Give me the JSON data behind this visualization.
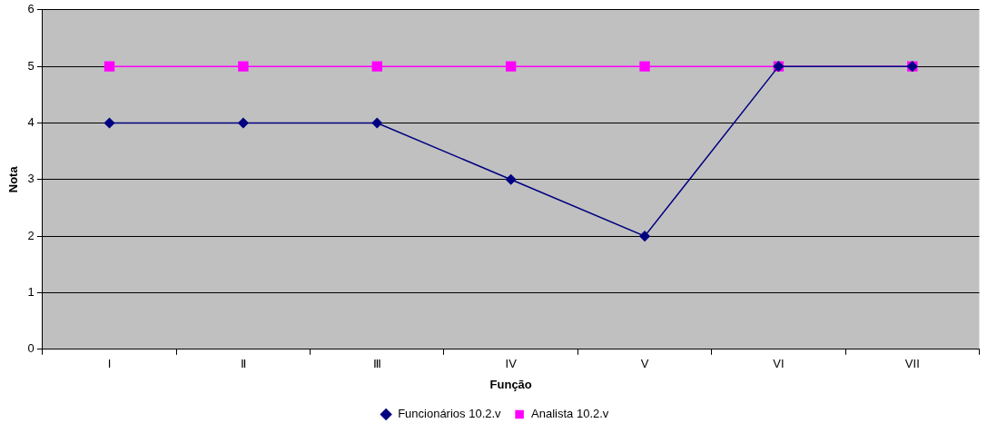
{
  "chart_data": {
    "type": "line",
    "xlabel": "Função",
    "ylabel": "Nota",
    "categories": [
      "I",
      "Ⅱ",
      "Ⅲ",
      "IV",
      "V",
      "VI",
      "VII"
    ],
    "series": [
      {
        "name": "Funcionários 10.2.v",
        "color": "#000080",
        "marker": "diamond",
        "values": [
          4,
          4,
          4,
          3,
          2,
          5,
          5
        ]
      },
      {
        "name": "Analista 10.2.v",
        "color": "#ff00ff",
        "marker": "square",
        "values": [
          5,
          5,
          5,
          5,
          5,
          5,
          5
        ]
      }
    ],
    "ylim": [
      0,
      6
    ],
    "yticks": [
      0,
      1,
      2,
      3,
      4,
      5,
      6
    ],
    "grid": "y",
    "legend": "bottom",
    "line_style": "solid"
  }
}
